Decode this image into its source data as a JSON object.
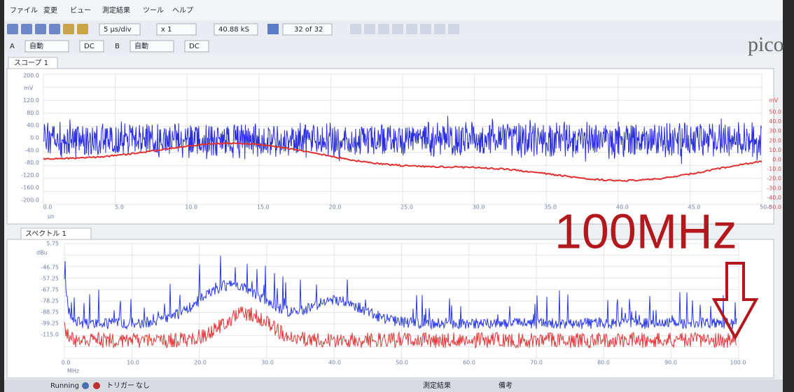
{
  "menu": [
    "ファイル",
    "変更",
    "ビュー",
    "測定結果",
    "ツール",
    "ヘルプ"
  ],
  "toolbar": {
    "timebase": "5 µs/div",
    "zoom": "x 1",
    "samples": "40.88 kS",
    "capture": "32 of 32"
  },
  "channels": [
    {
      "name": "A",
      "range": "自動",
      "coupling": "DC"
    },
    {
      "name": "B",
      "range": "自動",
      "coupling": "DC"
    }
  ],
  "logo": "pico",
  "scope": {
    "tab": "スコープ 1",
    "y_unit": "mV",
    "y_labels": [
      "200.0",
      "120.0",
      "80.0",
      "40.0",
      "0.0",
      "-40.0",
      "-80.0",
      "-120.0",
      "-160.0",
      "-200.0"
    ],
    "y2_unit": "mV",
    "y2_labels": [
      "50.0",
      "40.0",
      "30.0",
      "20.0",
      "10.0",
      "0.0",
      "-10.0",
      "-20.0",
      "-30.0",
      "-40.0",
      "-50.0"
    ],
    "x_unit": "µs",
    "x_labels": [
      "0.0",
      "5.0",
      "10.0",
      "15.0",
      "20.0",
      "25.0",
      "30.0",
      "35.0",
      "40.0",
      "45.0",
      "50.0"
    ]
  },
  "spectrum": {
    "tab": "スペクトル 1",
    "y_unit": "dBu",
    "y_labels": [
      "5.75",
      "-46.75",
      "-57.25",
      "-67.75",
      "-78.25",
      "-88.75",
      "-99.25",
      "-115.0"
    ],
    "x_unit": "MHz",
    "x_labels": [
      "0.0",
      "10.0",
      "20.0",
      "30.0",
      "40.0",
      "50.0",
      "60.0",
      "70.0",
      "80.0",
      "90.0",
      "100.0"
    ]
  },
  "annotation": "100MHz",
  "status": {
    "state": "Running",
    "trigger": "トリガー",
    "trigger_mode": "なし",
    "measurements": "測定結果",
    "notes": "備考"
  }
}
